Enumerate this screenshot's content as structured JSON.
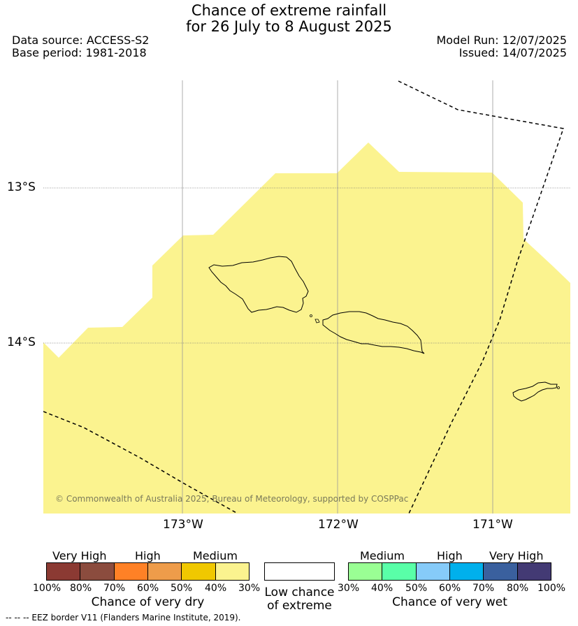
{
  "header": {
    "title_line1": "Chance of extreme rainfall",
    "title_line2": "for 26 July to 8 August 2025",
    "data_source": "Data source: ACCESS-S2",
    "base_period": "Base period: 1981-2018",
    "model_run": "Model Run: 12/07/2025",
    "issued": "Issued: 14/07/2025"
  },
  "map": {
    "lat_labels": [
      "13°S",
      "14°S"
    ],
    "lon_labels": [
      "173°W",
      "172°W",
      "171°W"
    ],
    "copyright": "© Commonwealth of Australia 2025, Bureau of Meteorology, supported by COSPPac",
    "fill_color": "#fbf38f",
    "fill_category": "Medium dry (30-40%)"
  },
  "legend": {
    "dry": {
      "headings": [
        "Very High",
        "High",
        "Medium"
      ],
      "colors": [
        "#8b3a33",
        "#8b4c3e",
        "#ff8126",
        "#ee9c4a",
        "#f0c800",
        "#fbf38f"
      ],
      "ticks": [
        "100%",
        "80%",
        "70%",
        "60%",
        "50%",
        "40%",
        "30%"
      ],
      "caption": "Chance of very dry"
    },
    "low": {
      "color": "#ffffff",
      "caption_line1": "Low chance",
      "caption_line2": "of extreme"
    },
    "wet": {
      "headings": [
        "Medium",
        "High",
        "Very High"
      ],
      "colors": [
        "#9aff94",
        "#59ffa8",
        "#86cbf9",
        "#00b0ec",
        "#3a609e",
        "#433a74"
      ],
      "ticks": [
        "30%",
        "40%",
        "50%",
        "60%",
        "70%",
        "80%",
        "100%"
      ],
      "caption": "Chance of very wet"
    }
  },
  "footnote": "-- -- -- EEZ border V11 (Flanders Marine Institute, 2019)."
}
